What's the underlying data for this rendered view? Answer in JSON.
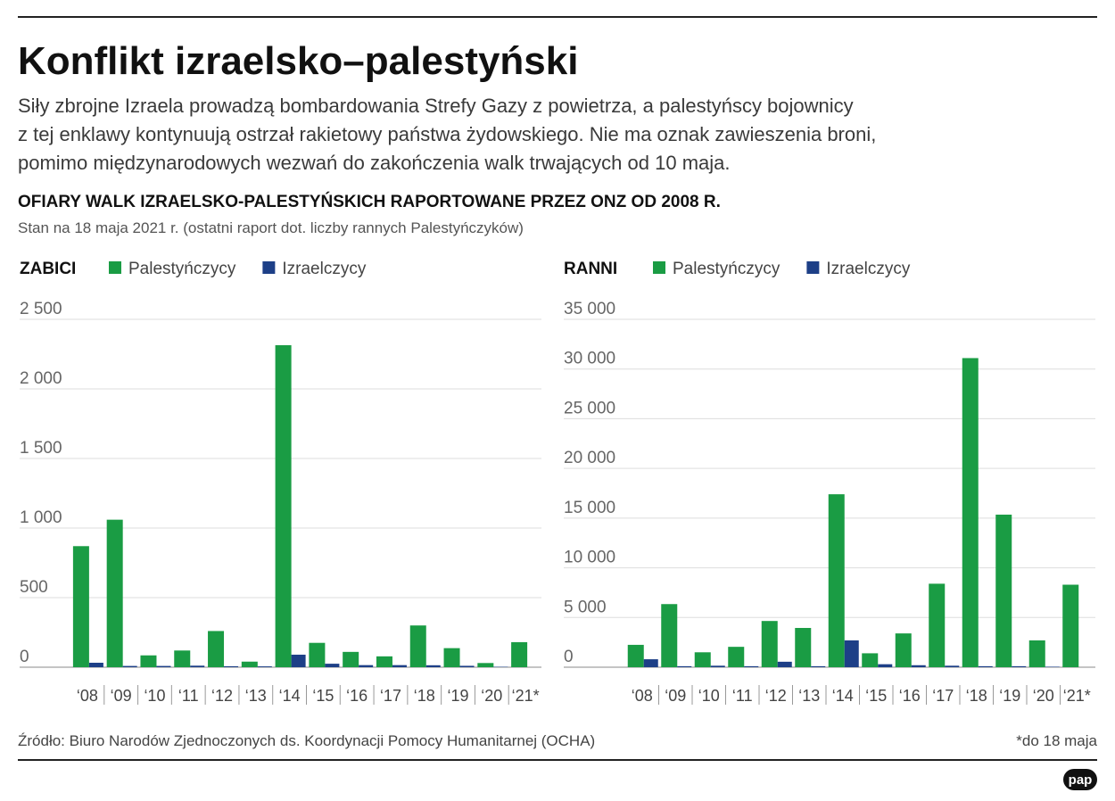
{
  "header": {
    "title": "Konflikt izraelsko–palestyński",
    "description": [
      "Siły zbrojne Izraela prowadzą bombardowania Strefy Gazy z powietrza, a palestyńscy bojownicy",
      "z tej enklawy kontynuują ostrzał rakietowy państwa żydowskiego. Nie ma oznak zawieszenia broni,",
      "pomimo międzynarodowych wezwań do zakończenia walk trwających od 10 maja."
    ],
    "heading": "OFIARY WALK IZRAELSKO-PALESTYŃSKICH RAPORTOWANE PRZEZ ONZ OD 2008 R.",
    "subheading": "Stan na 18 maja 2021 r. (ostatni raport dot. liczby rannych Palestyńczyków)"
  },
  "chart_data": [
    {
      "type": "bar",
      "title": "ZABICI",
      "categories": [
        "‘08",
        "‘09",
        "‘10",
        "‘11",
        "‘12",
        "‘13",
        "‘14",
        "‘15",
        "‘16",
        "‘17",
        "‘18",
        "‘19",
        "‘20",
        "‘21*"
      ],
      "series": [
        {
          "name": "Palestyńczycy",
          "color": "#1a9c44",
          "values": [
            870,
            1060,
            85,
            120,
            260,
            40,
            2314,
            175,
            110,
            78,
            300,
            137,
            30,
            180
          ]
        },
        {
          "name": "Izraelczycy",
          "color": "#1d3f87",
          "values": [
            32,
            9,
            9,
            11,
            7,
            6,
            90,
            25,
            15,
            15,
            14,
            10,
            3,
            0
          ]
        }
      ],
      "ylim": [
        0,
        2500
      ],
      "yticks": [
        0,
        500,
        {
          "value": 1000,
          "label": "1 000"
        },
        {
          "value": 1500,
          "label": "1 500"
        },
        {
          "value": 2000,
          "label": "2 000"
        },
        {
          "value": 2500,
          "label": "2 500"
        }
      ],
      "grid": true
    },
    {
      "type": "bar",
      "title": "RANNI",
      "categories": [
        "‘08",
        "‘09",
        "‘10",
        "‘11",
        "‘12",
        "‘13",
        "‘14",
        "‘15",
        "‘16",
        "‘17",
        "‘18",
        "‘19",
        "‘20",
        "‘21*"
      ],
      "series": [
        {
          "name": "Palestyńczycy",
          "color": "#1a9c44",
          "values": [
            2250,
            6350,
            1500,
            2050,
            4650,
            3950,
            17400,
            1400,
            3400,
            8400,
            31100,
            15350,
            2700,
            8300
          ]
        },
        {
          "name": "Izraelczycy",
          "color": "#1d3f87",
          "values": [
            800,
            100,
            150,
            100,
            550,
            100,
            2700,
            300,
            200,
            150,
            100,
            100,
            50,
            0
          ]
        }
      ],
      "ylim": [
        0,
        35000
      ],
      "yticks": [
        0,
        {
          "value": 5000,
          "label": "5 000"
        },
        {
          "value": 10000,
          "label": "10 000"
        },
        {
          "value": 15000,
          "label": "15 000"
        },
        {
          "value": 20000,
          "label": "20 000"
        },
        {
          "value": 25000,
          "label": "25 000"
        },
        {
          "value": 30000,
          "label": "30 000"
        },
        {
          "value": 35000,
          "label": "35 000"
        }
      ],
      "grid": true
    }
  ],
  "footer": {
    "source": "Źródło: Biuro Narodów Zjednoczonych ds. Koordynacji Pomocy Humanitarnej (OCHA)",
    "note": "*do 18 maja",
    "logo": "pap"
  }
}
